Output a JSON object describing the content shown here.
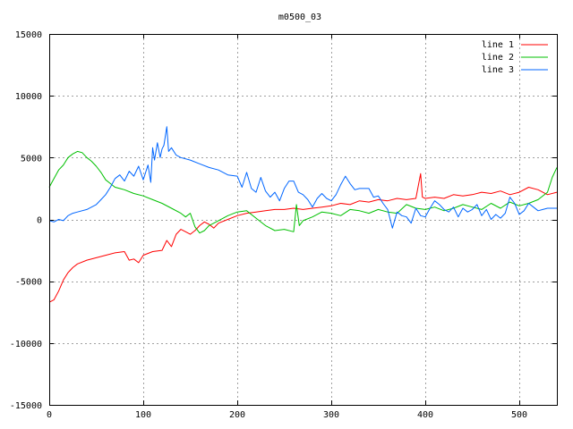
{
  "chart_data": {
    "type": "line",
    "title": "m0500_03",
    "xlabel": "",
    "ylabel": "",
    "xlim": [
      0,
      540
    ],
    "ylim": [
      -15000,
      15000
    ],
    "grid": true,
    "legend_position": "top-right",
    "x_ticks": [
      "0",
      "100",
      "200",
      "300",
      "400",
      "500"
    ],
    "y_ticks": [
      "15000",
      "10000",
      "5000",
      "0",
      "-5000",
      "-10000",
      "-15000"
    ],
    "series": [
      {
        "name": "line 1",
        "color": "#ff0000",
        "points": [
          [
            0,
            -6700
          ],
          [
            5,
            -6500
          ],
          [
            10,
            -5800
          ],
          [
            15,
            -4900
          ],
          [
            20,
            -4300
          ],
          [
            25,
            -3900
          ],
          [
            30,
            -3600
          ],
          [
            40,
            -3300
          ],
          [
            50,
            -3100
          ],
          [
            60,
            -2900
          ],
          [
            70,
            -2700
          ],
          [
            80,
            -2600
          ],
          [
            85,
            -3300
          ],
          [
            90,
            -3200
          ],
          [
            95,
            -3500
          ],
          [
            100,
            -2900
          ],
          [
            110,
            -2600
          ],
          [
            120,
            -2500
          ],
          [
            125,
            -1700
          ],
          [
            130,
            -2200
          ],
          [
            135,
            -1200
          ],
          [
            140,
            -800
          ],
          [
            145,
            -1000
          ],
          [
            150,
            -1200
          ],
          [
            155,
            -900
          ],
          [
            160,
            -500
          ],
          [
            165,
            -200
          ],
          [
            170,
            -400
          ],
          [
            175,
            -700
          ],
          [
            180,
            -300
          ],
          [
            190,
            0
          ],
          [
            200,
            300
          ],
          [
            210,
            500
          ],
          [
            220,
            600
          ],
          [
            230,
            700
          ],
          [
            240,
            800
          ],
          [
            250,
            800
          ],
          [
            260,
            900
          ],
          [
            270,
            800
          ],
          [
            280,
            900
          ],
          [
            290,
            1000
          ],
          [
            300,
            1100
          ],
          [
            310,
            1300
          ],
          [
            320,
            1200
          ],
          [
            330,
            1500
          ],
          [
            340,
            1400
          ],
          [
            350,
            1600
          ],
          [
            360,
            1500
          ],
          [
            370,
            1700
          ],
          [
            380,
            1600
          ],
          [
            390,
            1700
          ],
          [
            395,
            3700
          ],
          [
            397,
            1800
          ],
          [
            400,
            1700
          ],
          [
            410,
            1800
          ],
          [
            420,
            1700
          ],
          [
            430,
            2000
          ],
          [
            440,
            1900
          ],
          [
            450,
            2000
          ],
          [
            460,
            2200
          ],
          [
            470,
            2100
          ],
          [
            480,
            2300
          ],
          [
            490,
            2000
          ],
          [
            500,
            2200
          ],
          [
            510,
            2600
          ],
          [
            520,
            2400
          ],
          [
            530,
            2000
          ],
          [
            540,
            2200
          ]
        ]
      },
      {
        "name": "line 2",
        "color": "#00c000",
        "points": [
          [
            0,
            2600
          ],
          [
            5,
            3300
          ],
          [
            10,
            4000
          ],
          [
            15,
            4400
          ],
          [
            20,
            5000
          ],
          [
            25,
            5300
          ],
          [
            30,
            5500
          ],
          [
            35,
            5400
          ],
          [
            40,
            5000
          ],
          [
            45,
            4700
          ],
          [
            50,
            4300
          ],
          [
            55,
            3800
          ],
          [
            60,
            3200
          ],
          [
            65,
            2900
          ],
          [
            70,
            2600
          ],
          [
            75,
            2500
          ],
          [
            80,
            2400
          ],
          [
            90,
            2100
          ],
          [
            100,
            1900
          ],
          [
            110,
            1600
          ],
          [
            120,
            1300
          ],
          [
            130,
            900
          ],
          [
            140,
            500
          ],
          [
            145,
            200
          ],
          [
            150,
            500
          ],
          [
            155,
            -600
          ],
          [
            160,
            -1100
          ],
          [
            165,
            -900
          ],
          [
            170,
            -500
          ],
          [
            180,
            -100
          ],
          [
            190,
            300
          ],
          [
            200,
            600
          ],
          [
            210,
            700
          ],
          [
            220,
            100
          ],
          [
            230,
            -500
          ],
          [
            240,
            -900
          ],
          [
            250,
            -800
          ],
          [
            260,
            -1000
          ],
          [
            263,
            1200
          ],
          [
            266,
            -500
          ],
          [
            270,
            -100
          ],
          [
            280,
            200
          ],
          [
            290,
            600
          ],
          [
            300,
            500
          ],
          [
            310,
            300
          ],
          [
            320,
            800
          ],
          [
            330,
            700
          ],
          [
            340,
            500
          ],
          [
            350,
            800
          ],
          [
            360,
            600
          ],
          [
            370,
            500
          ],
          [
            380,
            1200
          ],
          [
            390,
            900
          ],
          [
            400,
            800
          ],
          [
            410,
            1000
          ],
          [
            420,
            700
          ],
          [
            430,
            900
          ],
          [
            440,
            1200
          ],
          [
            450,
            1000
          ],
          [
            460,
            800
          ],
          [
            470,
            1300
          ],
          [
            480,
            900
          ],
          [
            490,
            1400
          ],
          [
            500,
            1100
          ],
          [
            510,
            1300
          ],
          [
            520,
            1600
          ],
          [
            530,
            2200
          ],
          [
            535,
            3400
          ],
          [
            540,
            4200
          ]
        ]
      },
      {
        "name": "line 3",
        "color": "#0066ff",
        "points": [
          [
            0,
            -100
          ],
          [
            5,
            -200
          ],
          [
            10,
            0
          ],
          [
            15,
            -100
          ],
          [
            20,
            300
          ],
          [
            25,
            500
          ],
          [
            30,
            600
          ],
          [
            40,
            800
          ],
          [
            50,
            1200
          ],
          [
            55,
            1600
          ],
          [
            60,
            2000
          ],
          [
            65,
            2600
          ],
          [
            70,
            3300
          ],
          [
            75,
            3600
          ],
          [
            80,
            3100
          ],
          [
            85,
            3900
          ],
          [
            90,
            3500
          ],
          [
            95,
            4300
          ],
          [
            100,
            3200
          ],
          [
            105,
            4400
          ],
          [
            108,
            3000
          ],
          [
            110,
            5800
          ],
          [
            112,
            4800
          ],
          [
            115,
            6200
          ],
          [
            118,
            5000
          ],
          [
            120,
            5700
          ],
          [
            122,
            6000
          ],
          [
            125,
            7500
          ],
          [
            127,
            5500
          ],
          [
            130,
            5800
          ],
          [
            135,
            5200
          ],
          [
            140,
            5000
          ],
          [
            150,
            4800
          ],
          [
            160,
            4500
          ],
          [
            170,
            4200
          ],
          [
            180,
            4000
          ],
          [
            190,
            3600
          ],
          [
            200,
            3500
          ],
          [
            205,
            2600
          ],
          [
            210,
            3800
          ],
          [
            215,
            2500
          ],
          [
            220,
            2200
          ],
          [
            225,
            3400
          ],
          [
            230,
            2300
          ],
          [
            235,
            1800
          ],
          [
            240,
            2200
          ],
          [
            245,
            1500
          ],
          [
            250,
            2500
          ],
          [
            255,
            3100
          ],
          [
            260,
            3100
          ],
          [
            265,
            2200
          ],
          [
            270,
            2000
          ],
          [
            275,
            1600
          ],
          [
            280,
            1000
          ],
          [
            285,
            1700
          ],
          [
            290,
            2100
          ],
          [
            295,
            1700
          ],
          [
            300,
            1500
          ],
          [
            305,
            2000
          ],
          [
            310,
            2800
          ],
          [
            315,
            3500
          ],
          [
            320,
            2900
          ],
          [
            325,
            2400
          ],
          [
            330,
            2500
          ],
          [
            340,
            2500
          ],
          [
            345,
            1800
          ],
          [
            350,
            1900
          ],
          [
            355,
            1300
          ],
          [
            360,
            800
          ],
          [
            365,
            -700
          ],
          [
            370,
            600
          ],
          [
            375,
            300
          ],
          [
            380,
            200
          ],
          [
            385,
            -300
          ],
          [
            390,
            900
          ],
          [
            395,
            300
          ],
          [
            400,
            200
          ],
          [
            405,
            900
          ],
          [
            410,
            1500
          ],
          [
            415,
            1200
          ],
          [
            420,
            800
          ],
          [
            425,
            600
          ],
          [
            430,
            1000
          ],
          [
            435,
            200
          ],
          [
            440,
            900
          ],
          [
            445,
            600
          ],
          [
            450,
            800
          ],
          [
            455,
            1200
          ],
          [
            460,
            300
          ],
          [
            465,
            800
          ],
          [
            470,
            0
          ],
          [
            475,
            400
          ],
          [
            480,
            100
          ],
          [
            485,
            500
          ],
          [
            490,
            1800
          ],
          [
            495,
            1300
          ],
          [
            500,
            400
          ],
          [
            505,
            700
          ],
          [
            510,
            1300
          ],
          [
            515,
            1000
          ],
          [
            520,
            700
          ],
          [
            525,
            800
          ],
          [
            530,
            900
          ],
          [
            540,
            900
          ]
        ]
      }
    ]
  }
}
